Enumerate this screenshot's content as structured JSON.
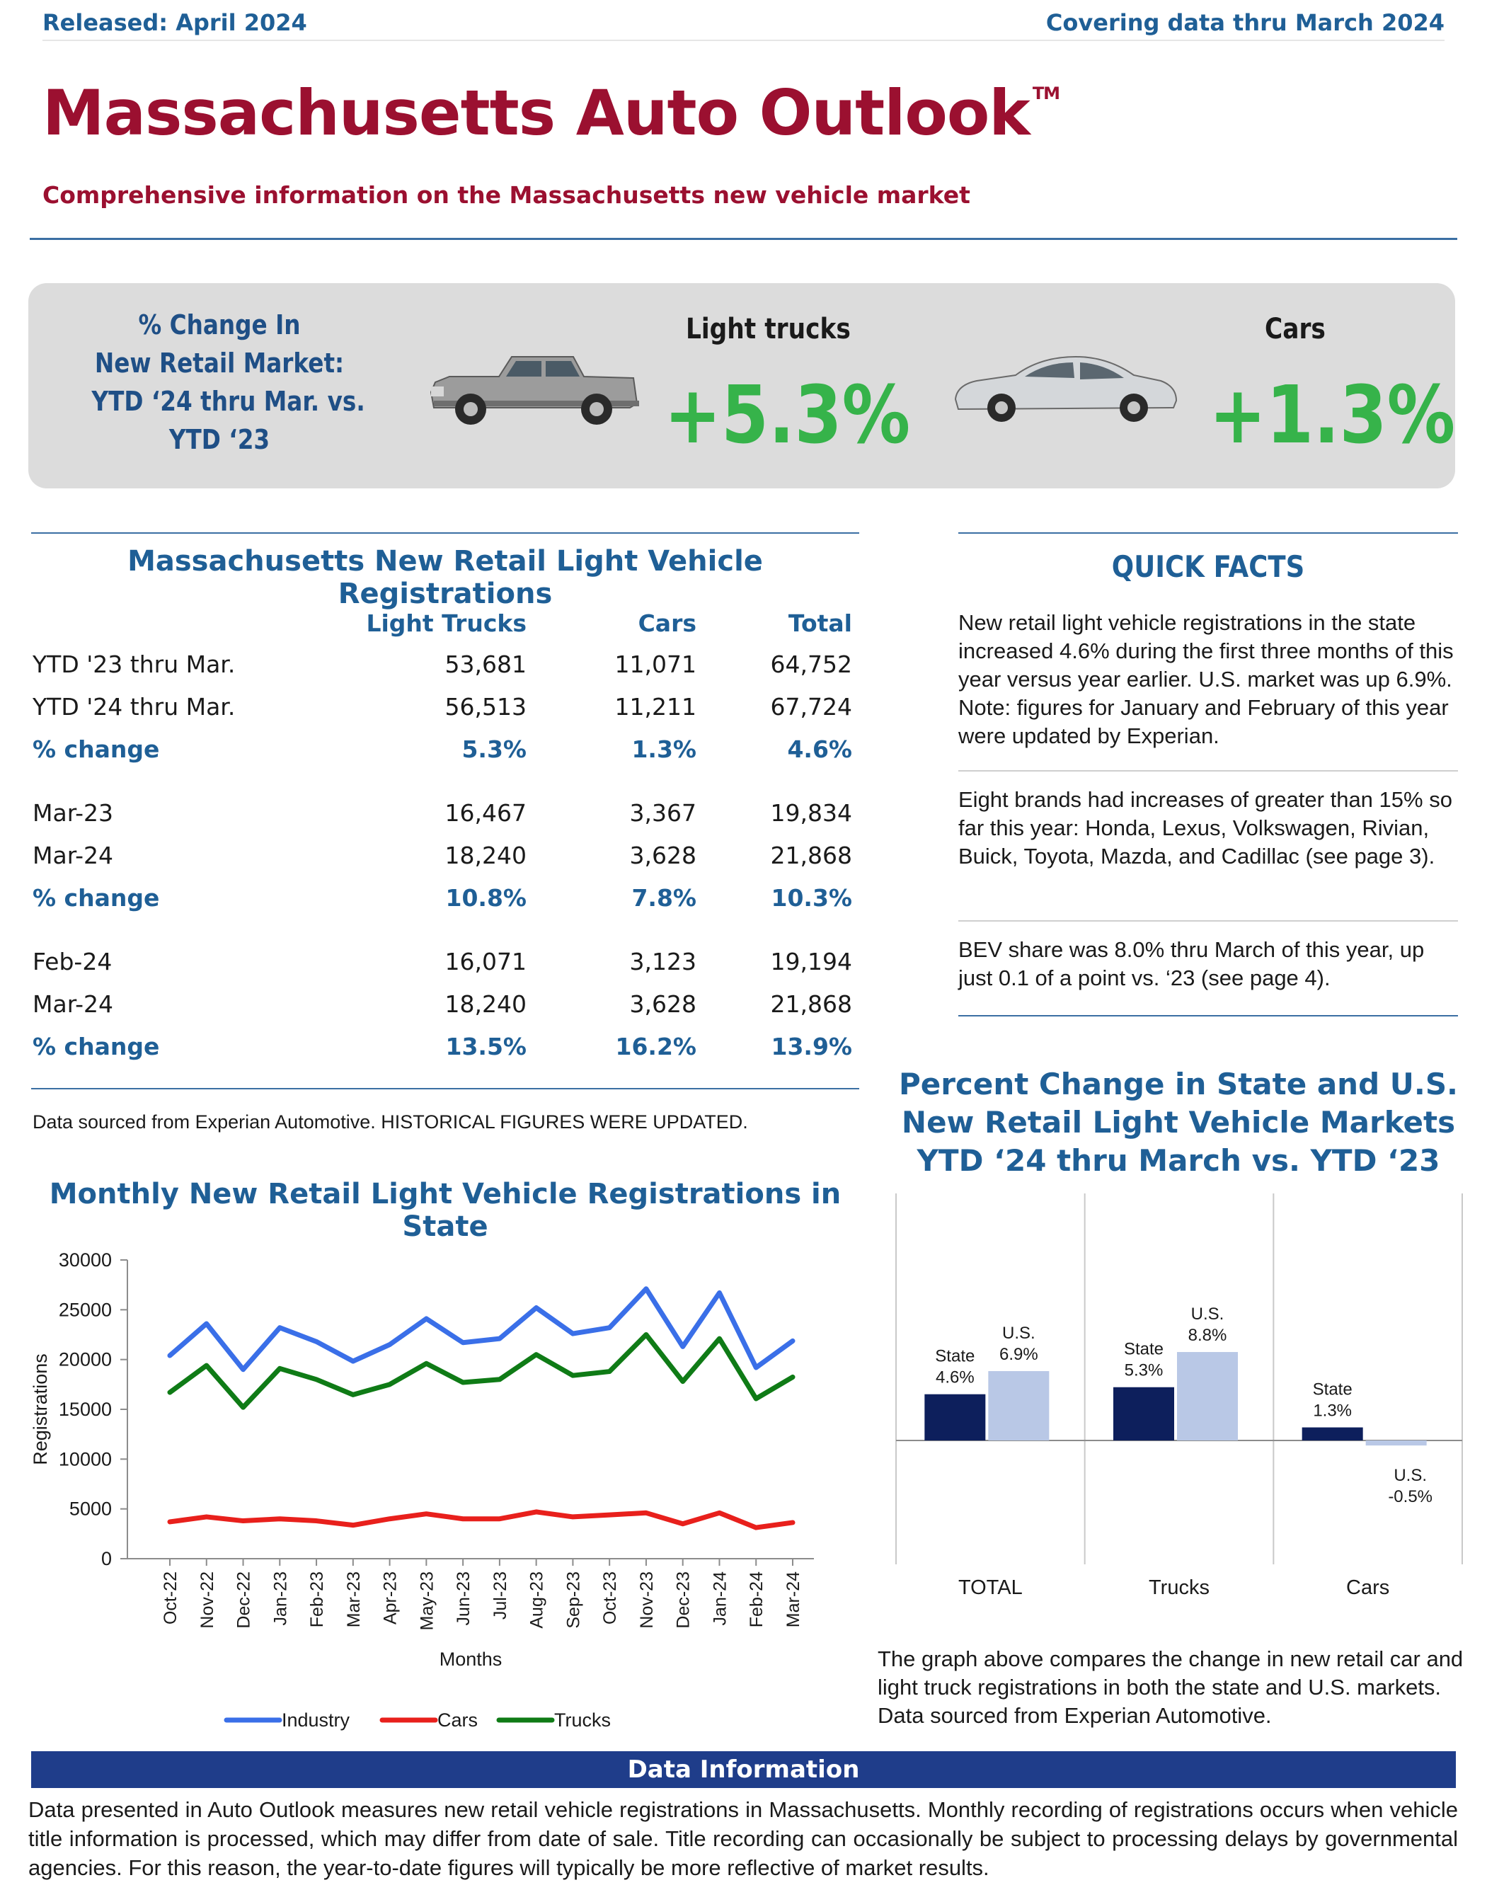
{
  "header": {
    "released": "Released: April 2024",
    "covering": "Covering data thru March 2024",
    "title": "Massachusetts Auto Outlook",
    "trademark": "TM",
    "subtitle": "Comprehensive information on the Massachusetts new vehicle market"
  },
  "banner": {
    "label_lines": [
      "% Change In",
      "New Retail Market:",
      "YTD ‘24 thru Mar. vs.",
      "YTD ‘23"
    ],
    "light_trucks_label": "Light trucks",
    "light_trucks_pct": "+5.3%",
    "cars_label": "Cars",
    "cars_pct": "+1.3%",
    "truck_icon": "pickup-truck-icon",
    "car_icon": "sedan-car-icon",
    "accent_green": "#36b34a"
  },
  "registrations_table": {
    "title": "Massachusetts New Retail Light Vehicle Registrations",
    "columns": [
      "",
      "Light Trucks",
      "Cars",
      "Total"
    ],
    "groups": [
      [
        [
          "YTD '23 thru Mar.",
          "53,681",
          "11,071",
          "64,752"
        ],
        [
          "YTD '24 thru Mar.",
          "56,513",
          "11,211",
          "67,724"
        ],
        [
          "% change",
          "5.3%",
          "1.3%",
          "4.6%"
        ]
      ],
      [
        [
          "Mar-23",
          "16,467",
          "3,367",
          "19,834"
        ],
        [
          "Mar-24",
          "18,240",
          "3,628",
          "21,868"
        ],
        [
          "% change",
          "10.8%",
          "7.8%",
          "10.3%"
        ]
      ],
      [
        [
          "Feb-24",
          "16,071",
          "3,123",
          "19,194"
        ],
        [
          "Mar-24",
          "18,240",
          "3,628",
          "21,868"
        ],
        [
          "% change",
          "13.5%",
          "16.2%",
          "13.9%"
        ]
      ]
    ],
    "source_note": "Data sourced from Experian Automotive. HISTORICAL FIGURES WERE UPDATED."
  },
  "quick_facts": {
    "title": "QUICK FACTS",
    "items": [
      "New retail light vehicle registrations in the state increased 4.6% during the first three months of this year versus year earlier. U.S. market was up 6.9%. Note: figures for January and February of this year were updated by Experian.",
      "Eight brands had increases of greater than 15% so far this year: Honda, Lexus, Volkswagen, Rivian, Buick, Toyota, Mazda, and Cadillac (see page 3).",
      "BEV share was 8.0% thru March of this year, up just 0.1 of a point vs. ‘23 (see page 4)."
    ]
  },
  "line_chart_title": "Monthly New Retail Light Vehicle Registrations in State",
  "bar_chart_title_lines": [
    "Percent Change in State and U.S.",
    "New Retail Light Vehicle Markets",
    "YTD ‘24 thru March vs. YTD ‘23"
  ],
  "bar_chart_note": "The graph above compares the change in new retail car and light truck registrations in both the state and U.S. markets. Data sourced from Experian Automotive.",
  "data_information": {
    "title": "Data Information",
    "text": "Data presented in Auto Outlook measures new retail vehicle registrations in Massachusetts. Monthly recording of registrations occurs when vehicle title information is processed, which may differ from date of sale. Title recording can occasionally be subject to processing delays by governmental agencies. For this reason, the year-to-date figures will typically be more reflective of market results."
  },
  "chart_data": [
    {
      "type": "line",
      "xlabel": "Months",
      "ylabel": "Registrations",
      "ylim": [
        0,
        30000
      ],
      "yticks": [
        0,
        5000,
        10000,
        15000,
        20000,
        25000,
        30000
      ],
      "x": [
        "Oct-22",
        "Nov-22",
        "Dec-22",
        "Jan-23",
        "Feb-23",
        "Mar-23",
        "Apr-23",
        "May-23",
        "Jun-23",
        "Jul-23",
        "Aug-23",
        "Sep-23",
        "Oct-23",
        "Nov-23",
        "Dec-23",
        "Jan-24",
        "Feb-24",
        "Mar-24"
      ],
      "legend": "bottom",
      "grid": false,
      "series": [
        {
          "name": "Industry",
          "color": "#3a6fe8",
          "values": [
            20400,
            23600,
            19000,
            23200,
            21800,
            19834,
            21500,
            24100,
            21700,
            22100,
            25200,
            22600,
            23200,
            27100,
            21300,
            26700,
            19194,
            21868
          ]
        },
        {
          "name": "Cars",
          "color": "#e8201c",
          "values": [
            3700,
            4200,
            3800,
            4000,
            3800,
            3367,
            4000,
            4500,
            4000,
            4000,
            4700,
            4200,
            4400,
            4600,
            3500,
            4600,
            3123,
            3628
          ]
        },
        {
          "name": "Trucks",
          "color": "#0f7b16",
          "values": [
            16700,
            19400,
            15200,
            19100,
            18000,
            16467,
            17500,
            19600,
            17700,
            18000,
            20500,
            18400,
            18800,
            22500,
            17800,
            22100,
            16071,
            18240
          ]
        }
      ]
    },
    {
      "type": "bar",
      "categories": [
        "TOTAL",
        "Trucks",
        "Cars"
      ],
      "series": [
        {
          "name": "State",
          "color": "#0d1f5c",
          "values": [
            4.6,
            5.3,
            1.3
          ],
          "labels": [
            "4.6%",
            "5.3%",
            "1.3%"
          ]
        },
        {
          "name": "U.S.",
          "color": "#b9c8e6",
          "values": [
            6.9,
            8.8,
            -0.5
          ],
          "labels": [
            "6.9%",
            "8.8%",
            "-0.5%"
          ]
        }
      ],
      "grid": false
    }
  ]
}
